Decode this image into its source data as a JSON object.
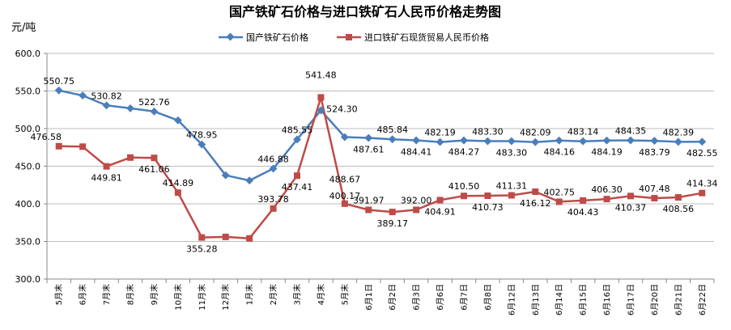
{
  "chart_data": {
    "type": "line",
    "title": "国产铁矿石价格与进口铁矿石人民币价格走势图",
    "ylabel": "元/吨",
    "xlabel": "",
    "ylim": [
      300,
      600
    ],
    "y_ticks": [
      "300.0",
      "350.0",
      "400.0",
      "450.0",
      "500.0",
      "550.0",
      "600.0"
    ],
    "grid": true,
    "legend_position": "top",
    "categories": [
      "5月末",
      "6月末",
      "7月末",
      "8月末",
      "9月末",
      "10月末",
      "11月末",
      "12月末",
      "1月末",
      "2月末",
      "3月末",
      "4月末",
      "5月末",
      "6月1日",
      "6月2日",
      "6月3日",
      "6月6日",
      "6月7日",
      "6月8日",
      "6月12日",
      "6月13日",
      "6月14日",
      "6月15日",
      "6月16日",
      "6月17日",
      "6月20日",
      "6月21日",
      "6月22日"
    ],
    "series": [
      {
        "name": "国产铁矿石价格",
        "color": "#4a7ebb",
        "marker": "diamond",
        "values": [
          550.75,
          544,
          530.82,
          527,
          522.76,
          511,
          478.95,
          438,
          431,
          446.88,
          485.55,
          524.3,
          488.67,
          487.61,
          485.84,
          484.41,
          482.19,
          484.27,
          483.3,
          483.3,
          482.09,
          484.16,
          483.14,
          484.19,
          484.35,
          483.79,
          482.39,
          482.55
        ],
        "labels": [
          "550.75",
          "",
          "530.82",
          "",
          "522.76",
          "",
          "478.95",
          "",
          "",
          "446.88",
          "485.55",
          "524.30",
          "488.67",
          "487.61",
          "485.84",
          "484.41",
          "482.19",
          "484.27",
          "483.30",
          "483.30",
          "482.09",
          "484.16",
          "483.14",
          "484.19",
          "484.35",
          "483.79",
          "482.39",
          "482.55"
        ]
      },
      {
        "name": "进口铁矿石现货贸易人民币价格",
        "color": "#be4b48",
        "marker": "square",
        "values": [
          476.58,
          476,
          449.81,
          461.5,
          461.06,
          414.89,
          355.28,
          356,
          354,
          393.78,
          437.41,
          541.48,
          400.17,
          391.97,
          389.17,
          392.0,
          404.91,
          410.5,
          410.73,
          411.31,
          416.12,
          402.75,
          404.43,
          406.3,
          410.37,
          407.48,
          408.56,
          414.34
        ],
        "labels": [
          "476.58",
          "",
          "449.81",
          "",
          "461.06",
          "414.89",
          "355.28",
          "",
          "",
          "393.78",
          "437.41",
          "541.48",
          "400.17",
          "391.97",
          "389.17",
          "392.00",
          "404.91",
          "410.50",
          "410.73",
          "411.31",
          "416.12",
          "402.75",
          "404.43",
          "406.30",
          "410.37",
          "407.48",
          "408.56",
          "414.34"
        ]
      }
    ]
  }
}
